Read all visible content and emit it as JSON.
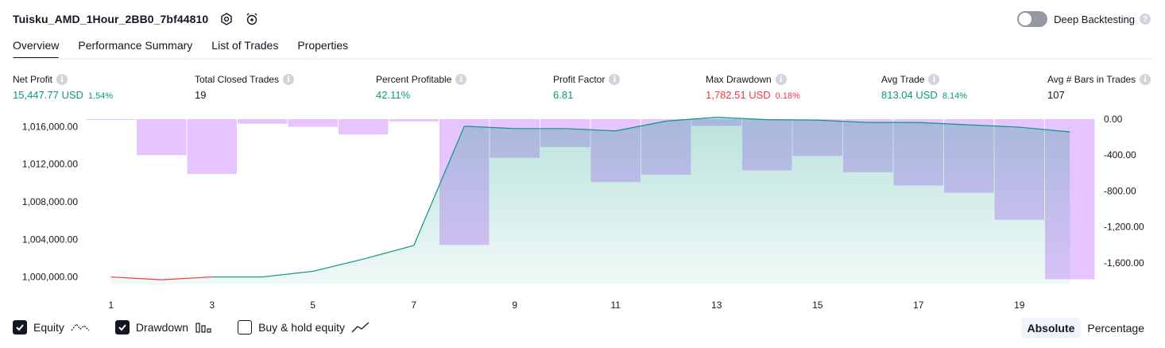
{
  "header": {
    "strategy_title": "Tuisku_AMD_1Hour_2BB0_7bf44810",
    "settings_icon": "settings-hexagon-icon",
    "alert_icon": "alarm-clock-plus-icon",
    "deep_backtesting_label": "Deep Backtesting",
    "deep_backtesting_on": false
  },
  "tabs": [
    {
      "label": "Overview",
      "active": true
    },
    {
      "label": "Performance Summary",
      "active": false
    },
    {
      "label": "List of Trades",
      "active": false
    },
    {
      "label": "Properties",
      "active": false
    }
  ],
  "metrics": [
    {
      "label": "Net Profit",
      "value": "15,447.77 USD",
      "pct": "1.54%",
      "color": "#089981"
    },
    {
      "label": "Total Closed Trades",
      "value": "19",
      "pct": "",
      "color": "#131722"
    },
    {
      "label": "Percent Profitable",
      "value": "42.11%",
      "pct": "",
      "color": "#089981"
    },
    {
      "label": "Profit Factor",
      "value": "6.81",
      "pct": "",
      "color": "#089981"
    },
    {
      "label": "Max Drawdown",
      "value": "1,782.51 USD",
      "pct": "0.18%",
      "color": "#f23645"
    },
    {
      "label": "Avg Trade",
      "value": "813.04 USD",
      "pct": "8.14%",
      "color": "#089981"
    },
    {
      "label": "Avg # Bars in Trades",
      "value": "107",
      "pct": "",
      "color": "#131722"
    }
  ],
  "chart_data": {
    "type": "line",
    "x_ticks": [
      "1",
      "3",
      "5",
      "7",
      "9",
      "11",
      "13",
      "15",
      "17",
      "19"
    ],
    "left_axis": {
      "ticks": [
        "1,016,000.00",
        "1,012,000.00",
        "1,008,000.00",
        "1,004,000.00",
        "1,000,000.00"
      ],
      "range": [
        999200,
        1016800
      ]
    },
    "right_axis": {
      "ticks": [
        "0.00",
        "-400.00",
        "-800.00",
        "-1,200.00",
        "-1,600.00"
      ],
      "range": [
        -1840,
        0
      ]
    },
    "series": [
      {
        "kind": "drawdown-bars",
        "x": [
          1,
          2,
          3,
          4,
          5,
          6,
          7,
          8,
          9,
          10,
          11,
          12,
          13,
          14,
          15,
          16,
          17,
          18,
          19,
          20
        ],
        "values": [
          -5,
          -400,
          -610,
          -50,
          -85,
          -170,
          -25,
          -1400,
          -430,
          -310,
          -700,
          -620,
          -75,
          -570,
          -410,
          -590,
          -740,
          -820,
          -1120,
          -1782.51
        ]
      },
      {
        "kind": "equity-line",
        "x": [
          1,
          2,
          3,
          4,
          5,
          6,
          7,
          8,
          9,
          10,
          11,
          12,
          13,
          14,
          15,
          16,
          17,
          18,
          19,
          20
        ],
        "values": [
          1000000,
          999700,
          1000000,
          1000000,
          1000600,
          1001900,
          1003350,
          1016050,
          1015800,
          1015800,
          1015550,
          1016600,
          1017000,
          1016750,
          1016700,
          1016450,
          1016450,
          1016200,
          1015950,
          1015447.77
        ]
      }
    ],
    "colors": {
      "equity_up": "#089981",
      "equity_down": "#f23645",
      "equity_fill": "#089981",
      "drawdown": "#c77dff",
      "gridline": "#f0f3fa"
    }
  },
  "legend": [
    {
      "label": "Equity",
      "checked": true,
      "icon": "equity-line-icon"
    },
    {
      "label": "Drawdown",
      "checked": true,
      "icon": "drawdown-bars-icon"
    },
    {
      "label": "Buy & hold equity",
      "checked": false,
      "icon": "buy-hold-line-icon"
    }
  ],
  "modes": [
    {
      "label": "Absolute",
      "active": true
    },
    {
      "label": "Percentage",
      "active": false
    }
  ]
}
